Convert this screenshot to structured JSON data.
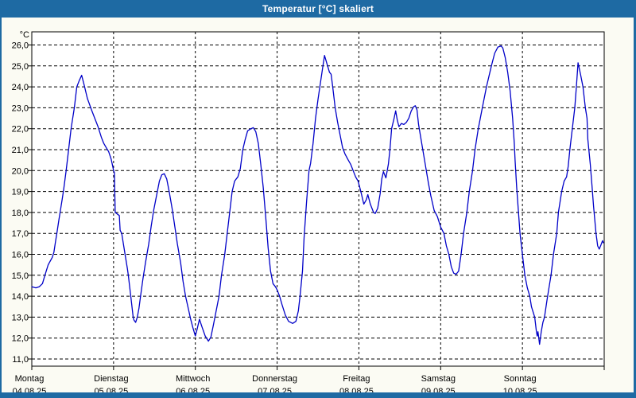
{
  "window": {
    "title": "Temperatur [°C] skaliert"
  },
  "colors": {
    "titlebar": "#1E6AA3",
    "window_border": "#1E6AA3",
    "content_bg": "#FBFBF3",
    "plot_bg": "#FFFFFF",
    "grid": "#000000",
    "line": "#0000C8",
    "text": "#000000",
    "title_text": "#FFFFFF"
  },
  "chart_data": {
    "type": "line",
    "title": "Temperatur [°C] skaliert",
    "y_unit_label": "°C",
    "ylabel": "Temperatur [°C]",
    "ylim": [
      11,
      26
    ],
    "y_tick_values": [
      26,
      25,
      24,
      23,
      22,
      21,
      20,
      19,
      18,
      17,
      16,
      15,
      14,
      13,
      12,
      11
    ],
    "y_tick_labels": [
      "26,0",
      "25,0",
      "24,0",
      "23,0",
      "22,0",
      "21,0",
      "20,0",
      "19,0",
      "18,0",
      "17,0",
      "16,0",
      "15,0",
      "14,0",
      "13,0",
      "12,0",
      "11,0"
    ],
    "grid": "dashed",
    "legend_position": "none",
    "x_days": [
      {
        "name": "Montag",
        "date": "04.08.25"
      },
      {
        "name": "Dienstag",
        "date": "05.08.25"
      },
      {
        "name": "Mittwoch",
        "date": "06.08.25"
      },
      {
        "name": "Donnerstag",
        "date": "07.08.25"
      },
      {
        "name": "Freitag",
        "date": "08.08.25"
      },
      {
        "name": "Samstag",
        "date": "09.08.25"
      },
      {
        "name": "Sonntag",
        "date": "10.08.25"
      }
    ],
    "series": [
      {
        "name": "Temperatur",
        "unit": "°C",
        "x_unit": "days_since_04_08_25",
        "points": [
          [
            0,
            14.45
          ],
          [
            0.05,
            14.4
          ],
          [
            0.09,
            14.45
          ],
          [
            0.13,
            14.6
          ],
          [
            0.16,
            15
          ],
          [
            0.2,
            15.5
          ],
          [
            0.25,
            15.85
          ],
          [
            0.27,
            16.1
          ],
          [
            0.29,
            16.6
          ],
          [
            0.31,
            17.1
          ],
          [
            0.33,
            17.6
          ],
          [
            0.35,
            18.1
          ],
          [
            0.37,
            18.6
          ],
          [
            0.39,
            19.1
          ],
          [
            0.42,
            20
          ],
          [
            0.45,
            21
          ],
          [
            0.48,
            22
          ],
          [
            0.52,
            23
          ],
          [
            0.55,
            24
          ],
          [
            0.58,
            24.3
          ],
          [
            0.61,
            24.55
          ],
          [
            0.64,
            24.1
          ],
          [
            0.68,
            23.45
          ],
          [
            0.73,
            22.9
          ],
          [
            0.77,
            22.5
          ],
          [
            0.81,
            22.1
          ],
          [
            0.85,
            21.6
          ],
          [
            0.88,
            21.3
          ],
          [
            0.91,
            21.1
          ],
          [
            0.94,
            20.9
          ],
          [
            0.97,
            20.55
          ],
          [
            1,
            20
          ],
          [
            1.01,
            19.9
          ],
          [
            1.02,
            18
          ],
          [
            1.07,
            17.85
          ],
          [
            1.08,
            17.15
          ],
          [
            1.1,
            17
          ],
          [
            1.14,
            16
          ],
          [
            1.17,
            15.3
          ],
          [
            1.18,
            15
          ],
          [
            1.21,
            14
          ],
          [
            1.24,
            13
          ],
          [
            1.25,
            12.85
          ],
          [
            1.27,
            12.75
          ],
          [
            1.29,
            13
          ],
          [
            1.31,
            13.4
          ],
          [
            1.33,
            14
          ],
          [
            1.36,
            14.85
          ],
          [
            1.39,
            15.6
          ],
          [
            1.43,
            16.5
          ],
          [
            1.46,
            17.35
          ],
          [
            1.49,
            18.1
          ],
          [
            1.53,
            18.9
          ],
          [
            1.56,
            19.5
          ],
          [
            1.59,
            19.8
          ],
          [
            1.62,
            19.85
          ],
          [
            1.65,
            19.6
          ],
          [
            1.68,
            19
          ],
          [
            1.72,
            18.1
          ],
          [
            1.75,
            17.3
          ],
          [
            1.78,
            16.5
          ],
          [
            1.82,
            15.6
          ],
          [
            1.85,
            14.7
          ],
          [
            1.88,
            14
          ],
          [
            1.92,
            13.3
          ],
          [
            1.94,
            12.95
          ],
          [
            1.97,
            12.5
          ],
          [
            2,
            12.1
          ],
          [
            2.02,
            12.4
          ],
          [
            2.05,
            12.9
          ],
          [
            2.08,
            12.55
          ],
          [
            2.12,
            12.1
          ],
          [
            2.16,
            11.85
          ],
          [
            2.19,
            12.05
          ],
          [
            2.22,
            12.6
          ],
          [
            2.25,
            13.2
          ],
          [
            2.29,
            14
          ],
          [
            2.32,
            15
          ],
          [
            2.36,
            16
          ],
          [
            2.39,
            17
          ],
          [
            2.42,
            18
          ],
          [
            2.45,
            19
          ],
          [
            2.48,
            19.5
          ],
          [
            2.52,
            19.7
          ],
          [
            2.55,
            20.1
          ],
          [
            2.58,
            21
          ],
          [
            2.61,
            21.5
          ],
          [
            2.64,
            21.9
          ],
          [
            2.68,
            22
          ],
          [
            2.71,
            22.05
          ],
          [
            2.74,
            21.85
          ],
          [
            2.77,
            21.3
          ],
          [
            2.8,
            20.3
          ],
          [
            2.83,
            19.2
          ],
          [
            2.86,
            17.8
          ],
          [
            2.89,
            16.3
          ],
          [
            2.92,
            15.2
          ],
          [
            2.95,
            14.6
          ],
          [
            2.98,
            14.45
          ],
          [
            3,
            14.3
          ],
          [
            3.03,
            14
          ],
          [
            3.06,
            13.6
          ],
          [
            3.1,
            13.1
          ],
          [
            3.14,
            12.8
          ],
          [
            3.19,
            12.7
          ],
          [
            3.23,
            12.8
          ],
          [
            3.26,
            13.3
          ],
          [
            3.28,
            14
          ],
          [
            3.31,
            15.2
          ],
          [
            3.33,
            16.8
          ],
          [
            3.36,
            18.5
          ],
          [
            3.39,
            20
          ],
          [
            3.41,
            20.35
          ],
          [
            3.44,
            21.3
          ],
          [
            3.47,
            22.5
          ],
          [
            3.5,
            23.4
          ],
          [
            3.53,
            24.2
          ],
          [
            3.56,
            25
          ],
          [
            3.58,
            25.5
          ],
          [
            3.61,
            25.1
          ],
          [
            3.64,
            24.7
          ],
          [
            3.66,
            24.6
          ],
          [
            3.68,
            24
          ],
          [
            3.71,
            23
          ],
          [
            3.74,
            22.3
          ],
          [
            3.77,
            21.7
          ],
          [
            3.8,
            21.1
          ],
          [
            3.83,
            20.8
          ],
          [
            3.87,
            20.5
          ],
          [
            3.9,
            20.3
          ],
          [
            3.93,
            20
          ],
          [
            3.96,
            19.7
          ],
          [
            3.99,
            19.5
          ],
          [
            4.01,
            19.2
          ],
          [
            4.03,
            18.9
          ],
          [
            4.06,
            18.4
          ],
          [
            4.09,
            18.6
          ],
          [
            4.11,
            18.85
          ],
          [
            4.14,
            18.4
          ],
          [
            4.18,
            18
          ],
          [
            4.2,
            17.95
          ],
          [
            4.23,
            18.2
          ],
          [
            4.26,
            18.9
          ],
          [
            4.28,
            19.6
          ],
          [
            4.3,
            19.95
          ],
          [
            4.33,
            19.65
          ],
          [
            4.36,
            20.3
          ],
          [
            4.38,
            21
          ],
          [
            4.4,
            22
          ],
          [
            4.43,
            22.5
          ],
          [
            4.45,
            22.85
          ],
          [
            4.47,
            22.4
          ],
          [
            4.49,
            22.1
          ],
          [
            4.52,
            22.25
          ],
          [
            4.55,
            22.2
          ],
          [
            4.58,
            22.3
          ],
          [
            4.61,
            22.5
          ],
          [
            4.64,
            22.85
          ],
          [
            4.67,
            23.05
          ],
          [
            4.69,
            23.1
          ],
          [
            4.71,
            22.9
          ],
          [
            4.73,
            22.2
          ],
          [
            4.76,
            21.5
          ],
          [
            4.79,
            20.8
          ],
          [
            4.82,
            20.1
          ],
          [
            4.85,
            19.4
          ],
          [
            4.88,
            18.8
          ],
          [
            4.92,
            18.1
          ],
          [
            4.96,
            17.8
          ],
          [
            5,
            17.3
          ],
          [
            5.04,
            17
          ],
          [
            5.07,
            16.4
          ],
          [
            5.1,
            16
          ],
          [
            5.13,
            15.4
          ],
          [
            5.16,
            15.1
          ],
          [
            5.19,
            15.05
          ],
          [
            5.22,
            15.2
          ],
          [
            5.25,
            16
          ],
          [
            5.28,
            17
          ],
          [
            5.32,
            18
          ],
          [
            5.35,
            19
          ],
          [
            5.39,
            20
          ],
          [
            5.42,
            21
          ],
          [
            5.46,
            22
          ],
          [
            5.51,
            23
          ],
          [
            5.56,
            24
          ],
          [
            5.62,
            25
          ],
          [
            5.66,
            25.6
          ],
          [
            5.7,
            25.9
          ],
          [
            5.74,
            25.95
          ],
          [
            5.76,
            25.85
          ],
          [
            5.79,
            25.4
          ],
          [
            5.82,
            24.7
          ],
          [
            5.85,
            23.8
          ],
          [
            5.88,
            22.5
          ],
          [
            5.9,
            21.3
          ],
          [
            5.91,
            20.5
          ],
          [
            5.93,
            19.2
          ],
          [
            5.95,
            18.1
          ],
          [
            5.97,
            17
          ],
          [
            6,
            16
          ],
          [
            6.03,
            15
          ],
          [
            6.06,
            14.4
          ],
          [
            6.09,
            14
          ],
          [
            6.11,
            13.5
          ],
          [
            6.15,
            13
          ],
          [
            6.17,
            12.35
          ],
          [
            6.18,
            12.1
          ],
          [
            6.19,
            12.3
          ],
          [
            6.21,
            11.7
          ],
          [
            6.23,
            12.3
          ],
          [
            6.25,
            12.75
          ],
          [
            6.27,
            13
          ],
          [
            6.3,
            13.8
          ],
          [
            6.32,
            14.3
          ],
          [
            6.35,
            15
          ],
          [
            6.38,
            16
          ],
          [
            6.42,
            17
          ],
          [
            6.44,
            18
          ],
          [
            6.48,
            19
          ],
          [
            6.51,
            19.5
          ],
          [
            6.54,
            19.7
          ],
          [
            6.56,
            20.2
          ],
          [
            6.58,
            21
          ],
          [
            6.61,
            22
          ],
          [
            6.64,
            23
          ],
          [
            6.66,
            24
          ],
          [
            6.68,
            25.15
          ],
          [
            6.71,
            24.6
          ],
          [
            6.74,
            24
          ],
          [
            6.77,
            23
          ],
          [
            6.79,
            22.5
          ],
          [
            6.8,
            21.5
          ],
          [
            6.83,
            20.3
          ],
          [
            6.85,
            19.3
          ],
          [
            6.87,
            18.3
          ],
          [
            6.9,
            17
          ],
          [
            6.92,
            16.4
          ],
          [
            6.94,
            16.25
          ],
          [
            6.96,
            16.45
          ],
          [
            6.98,
            16.65
          ],
          [
            6.99,
            16.55
          ]
        ]
      }
    ]
  }
}
